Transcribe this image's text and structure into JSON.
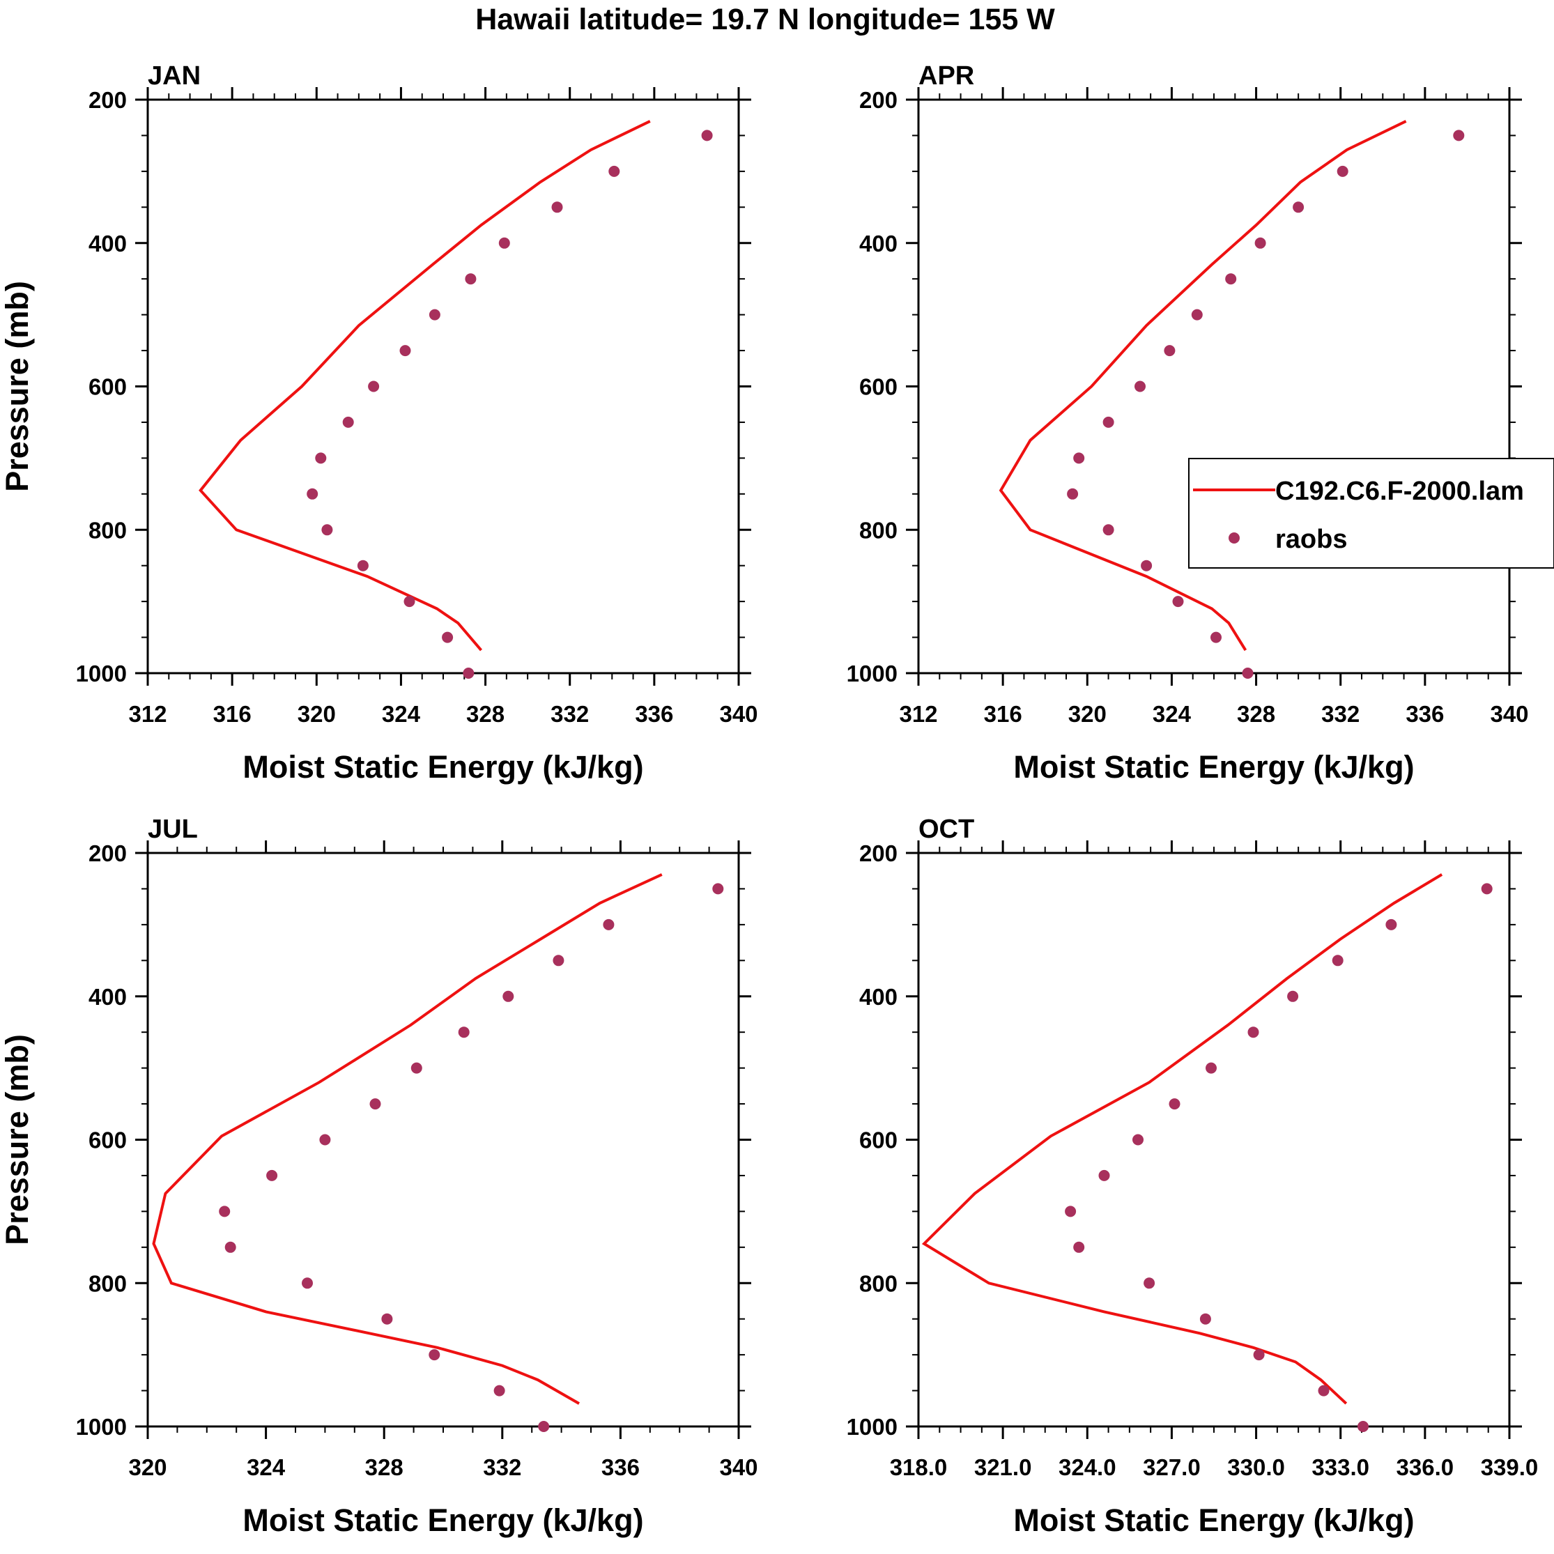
{
  "figure": {
    "title": "Hawaii  latitude= 19.7 N longitude= 155 W"
  },
  "legend": {
    "model_label": "C192.C6.F-2000.lam",
    "obs_label": "raobs"
  },
  "colors": {
    "model": "#ee1111",
    "obs": "#a8305c",
    "axis": "#000000"
  },
  "chart_data": [
    {
      "type": "line",
      "title": "JAN",
      "xlabel": "Moist Static Energy (kJ/kg)",
      "ylabel": "Pressure (mb)",
      "xlim": [
        312,
        340
      ],
      "ylim": [
        200,
        1000
      ],
      "xticks": [
        312,
        316,
        320,
        324,
        328,
        332,
        336,
        340
      ],
      "xtick_labels": [
        "312",
        "316",
        "320",
        "324",
        "328",
        "332",
        "336",
        "340"
      ],
      "yticks": [
        200,
        400,
        600,
        800,
        1000
      ],
      "ytick_labels": [
        "200",
        "400",
        "600",
        "800",
        "1000"
      ],
      "legend": "none",
      "series": [
        {
          "name": "C192.C6.F-2000.lam",
          "kind": "line",
          "pressure": [
            230,
            270,
            315,
            375,
            430,
            515,
            600,
            675,
            745,
            800,
            865,
            910,
            930,
            968
          ],
          "values": [
            335.8,
            333.0,
            330.6,
            327.8,
            325.5,
            322.0,
            319.3,
            316.4,
            314.5,
            316.2,
            322.4,
            325.7,
            326.7,
            327.8
          ]
        },
        {
          "name": "raobs",
          "kind": "scatter",
          "pressure": [
            250,
            300,
            350,
            400,
            450,
            500,
            550,
            600,
            650,
            700,
            750,
            800,
            850,
            900,
            950,
            1000
          ],
          "values": [
            338.5,
            334.1,
            331.4,
            328.9,
            327.3,
            325.6,
            324.2,
            322.7,
            321.5,
            320.2,
            319.8,
            320.5,
            322.2,
            324.4,
            326.2,
            327.2
          ]
        }
      ]
    },
    {
      "type": "line",
      "title": "APR",
      "xlabel": "Moist Static Energy (kJ/kg)",
      "ylabel": "",
      "xlim": [
        312,
        340
      ],
      "ylim": [
        200,
        1000
      ],
      "xticks": [
        312,
        316,
        320,
        324,
        328,
        332,
        336,
        340
      ],
      "xtick_labels": [
        "312",
        "316",
        "320",
        "324",
        "328",
        "332",
        "336",
        "340"
      ],
      "yticks": [
        200,
        400,
        600,
        800,
        1000
      ],
      "ytick_labels": [
        "200",
        "400",
        "600",
        "800",
        "1000"
      ],
      "legend": "right",
      "series": [
        {
          "name": "C192.C6.F-2000.lam",
          "kind": "line",
          "pressure": [
            230,
            270,
            315,
            375,
            430,
            515,
            600,
            675,
            745,
            800,
            865,
            910,
            930,
            968
          ],
          "values": [
            335.1,
            332.3,
            330.1,
            328.0,
            325.9,
            322.8,
            320.2,
            317.3,
            315.9,
            317.3,
            322.8,
            325.9,
            326.7,
            327.5
          ]
        },
        {
          "name": "raobs",
          "kind": "scatter",
          "pressure": [
            250,
            300,
            350,
            400,
            450,
            500,
            550,
            600,
            650,
            700,
            750,
            800,
            850,
            900,
            950,
            1000
          ],
          "values": [
            337.6,
            332.1,
            330.0,
            328.2,
            326.8,
            325.2,
            323.9,
            322.5,
            321.0,
            319.6,
            319.3,
            321.0,
            322.8,
            324.3,
            326.1,
            327.6
          ]
        }
      ]
    },
    {
      "type": "line",
      "title": "JUL",
      "xlabel": "Moist Static Energy (kJ/kg)",
      "ylabel": "Pressure (mb)",
      "xlim": [
        320,
        340
      ],
      "ylim": [
        200,
        1000
      ],
      "xticks": [
        320,
        324,
        328,
        332,
        336,
        340
      ],
      "xtick_labels": [
        "320",
        "324",
        "328",
        "332",
        "336",
        "340"
      ],
      "yticks": [
        200,
        400,
        600,
        800,
        1000
      ],
      "ytick_labels": [
        "200",
        "400",
        "600",
        "800",
        "1000"
      ],
      "legend": "none",
      "series": [
        {
          "name": "C192.C6.F-2000.lam",
          "kind": "line",
          "pressure": [
            230,
            270,
            320,
            375,
            440,
            520,
            595,
            675,
            745,
            800,
            840,
            870,
            890,
            915,
            935,
            968
          ],
          "values": [
            337.4,
            335.3,
            333.3,
            331.1,
            328.9,
            325.8,
            322.5,
            320.6,
            320.2,
            320.8,
            324.0,
            327.5,
            329.8,
            332.0,
            333.2,
            334.6
          ]
        },
        {
          "name": "raobs",
          "kind": "scatter",
          "pressure": [
            250,
            300,
            350,
            400,
            450,
            500,
            550,
            600,
            650,
            700,
            750,
            800,
            850,
            900,
            950,
            1000
          ],
          "values": [
            339.3,
            335.6,
            333.9,
            332.2,
            330.7,
            329.1,
            327.7,
            326.0,
            324.2,
            322.6,
            322.8,
            325.4,
            328.1,
            329.7,
            331.9,
            333.4
          ]
        }
      ]
    },
    {
      "type": "line",
      "title": "OCT",
      "xlabel": "Moist Static Energy (kJ/kg)",
      "ylabel": "",
      "xlim": [
        318,
        339
      ],
      "ylim": [
        200,
        1000
      ],
      "xticks": [
        318,
        321,
        324,
        327,
        330,
        333,
        336,
        339
      ],
      "xtick_labels": [
        "318.0",
        "321.0",
        "324.0",
        "327.0",
        "330.0",
        "333.0",
        "336.0",
        "339.0"
      ],
      "yticks": [
        200,
        400,
        600,
        800,
        1000
      ],
      "ytick_labels": [
        "200",
        "400",
        "600",
        "800",
        "1000"
      ],
      "legend": "none",
      "series": [
        {
          "name": "C192.C6.F-2000.lam",
          "kind": "line",
          "pressure": [
            230,
            270,
            320,
            375,
            440,
            520,
            595,
            675,
            745,
            800,
            840,
            870,
            890,
            910,
            935,
            968
          ],
          "values": [
            336.6,
            334.9,
            333.0,
            331.1,
            329.0,
            326.2,
            322.7,
            320.0,
            318.2,
            320.5,
            324.6,
            328.0,
            329.9,
            331.4,
            332.3,
            333.2
          ]
        },
        {
          "name": "raobs",
          "kind": "scatter",
          "pressure": [
            250,
            300,
            350,
            400,
            450,
            500,
            550,
            600,
            650,
            700,
            750,
            800,
            850,
            900,
            950,
            1000
          ],
          "values": [
            338.2,
            334.8,
            332.9,
            331.3,
            329.9,
            328.4,
            327.1,
            325.8,
            324.6,
            323.4,
            323.7,
            326.2,
            328.2,
            330.1,
            332.4,
            333.8
          ]
        }
      ]
    }
  ]
}
